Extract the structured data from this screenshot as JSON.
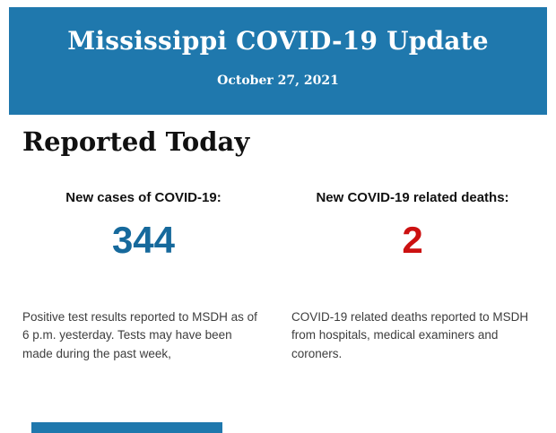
{
  "page": {
    "header": {
      "title": "Mississippi COVID-19 Update",
      "date": "October 27, 2021"
    },
    "section_heading": "Reported Today",
    "stats": [
      {
        "label": "New cases of COVID-19:",
        "value": "344",
        "description": "Positive test results reported to MSDH as of 6 p.m. yesterday. Tests may have been made during the past week,"
      },
      {
        "label": "New COVID-19 related deaths:",
        "value": "2",
        "description": "COVID-19 related deaths reported to MSDH from hospitals, medical examiners and coroners."
      }
    ],
    "colors": {
      "header_background": "#1f78ad",
      "header_text": "#ffffff",
      "cases_value": "#16699c",
      "deaths_value": "#cc1111",
      "next_section_bar": "#1f78ad"
    }
  }
}
